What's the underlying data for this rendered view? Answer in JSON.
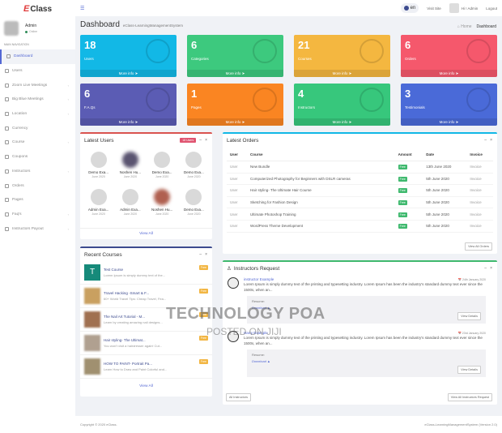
{
  "app": {
    "logo_e": "E",
    "logo_text": "Class"
  },
  "sidebar": {
    "user": {
      "name": "Admin",
      "status": "Online"
    },
    "nav_header": "MAIN NAVIGATION",
    "items": [
      {
        "label": "Dashboard",
        "icon": "dashboard-icon",
        "active": true,
        "arrow": false
      },
      {
        "label": "Users",
        "icon": "user-icon",
        "arrow": false
      },
      {
        "label": "Zoom Live Meetings",
        "icon": "video-icon",
        "arrow": true
      },
      {
        "label": "Big Blue Meetings",
        "icon": "eye-icon",
        "arrow": true
      },
      {
        "label": "Location",
        "icon": "globe-icon",
        "arrow": true
      },
      {
        "label": "Currency",
        "icon": "money-icon",
        "arrow": false
      },
      {
        "label": "Course",
        "icon": "book-icon",
        "arrow": true
      },
      {
        "label": "Coupons",
        "icon": "ticket-icon",
        "arrow": false
      },
      {
        "label": "Instructors",
        "icon": "instructor-icon",
        "arrow": true
      },
      {
        "label": "Orders",
        "icon": "history-icon",
        "arrow": false
      },
      {
        "label": "Pages",
        "icon": "page-icon",
        "arrow": false
      },
      {
        "label": "Faq's",
        "icon": "question-icon",
        "arrow": true
      },
      {
        "label": "Instructors Payout",
        "icon": "payout-icon",
        "arrow": true
      }
    ]
  },
  "topbar": {
    "lang": "en",
    "visit_site": "Visit Site",
    "greeting": "Hi ! Admin",
    "logout": "Logout"
  },
  "page": {
    "title": "Dashboard",
    "subtitle": "eClass-LearningManagementSystem",
    "crumb_home": "Home",
    "crumb_current": "Dashboard"
  },
  "cards": [
    {
      "num": "18",
      "label": "Users",
      "more": "More info",
      "color": "#12b8e6"
    },
    {
      "num": "6",
      "label": "Categories",
      "more": "More info",
      "color": "#3dc97e"
    },
    {
      "num": "21",
      "label": "Courses",
      "more": "More info",
      "color": "#f4b740"
    },
    {
      "num": "6",
      "label": "Orders",
      "more": "More info",
      "color": "#f5586c"
    },
    {
      "num": "6",
      "label": "F.A.Qs",
      "more": "More info",
      "color": "#5b5cb4"
    },
    {
      "num": "1",
      "label": "Pages",
      "more": "More info",
      "color": "#fa8522"
    },
    {
      "num": "4",
      "label": "Instructors",
      "more": "More info",
      "color": "#37c77c"
    },
    {
      "num": "3",
      "label": "Testimonials",
      "more": "More info",
      "color": "#4a6ad8"
    }
  ],
  "latest_users": {
    "title": "Latest Users",
    "badge": "18 Users",
    "view_all": "View All",
    "users": [
      {
        "name": "Demo Exa...",
        "date": "June 2020"
      },
      {
        "name": "Noshen Hu...",
        "date": "June 2020"
      },
      {
        "name": "Demo Exa...",
        "date": "June 2020"
      },
      {
        "name": "Demo Exa...",
        "date": "June 2020"
      },
      {
        "name": "Admin Exa...",
        "date": "June 2020"
      },
      {
        "name": "Admin Exa...",
        "date": "June 2020"
      },
      {
        "name": "Noshen Hu...",
        "date": "June 2020"
      },
      {
        "name": "Demo Exa...",
        "date": "June 2020"
      }
    ]
  },
  "latest_orders": {
    "title": "Latest Orders",
    "columns": [
      "User",
      "Course",
      "Amount",
      "Date",
      "Invoice"
    ],
    "rows": [
      {
        "user": "User",
        "course": "New Bundle",
        "amount": "Free",
        "date": "13th June 2020",
        "invoice": "Invoice"
      },
      {
        "user": "User",
        "course": "Computerized Photography for Beginners with DSLR cameras",
        "amount": "Free",
        "date": "5th June 2020",
        "invoice": "Invoice"
      },
      {
        "user": "User",
        "course": "Hair styling- The Ultimate Hair Course",
        "amount": "Free",
        "date": "5th June 2020",
        "invoice": "Invoice"
      },
      {
        "user": "User",
        "course": "Sketching for Fashion Design",
        "amount": "Free",
        "date": "5th June 2020",
        "invoice": "Invoice"
      },
      {
        "user": "User",
        "course": "Ultimate Photoshop Training",
        "amount": "Free",
        "date": "5th June 2020",
        "invoice": "Invoice"
      },
      {
        "user": "User",
        "course": "WordPress Theme Development",
        "amount": "Free",
        "date": "5th June 2020",
        "invoice": "Invoice"
      }
    ],
    "view_all": "View All Orders"
  },
  "recent_courses": {
    "title": "Recent Courses",
    "view_all": "View All",
    "items": [
      {
        "title": "Test Course",
        "desc": "Lorem Ipsum is simply dummy text of the...",
        "price": "Free",
        "thumb": "T"
      },
      {
        "title": "Travel Hacking -Smart & F...",
        "desc": "60+ World Travel Tips: Cheap Travel, Fea...",
        "price": "Free",
        "thumb": ""
      },
      {
        "title": "The Nail Art Tutorial - M...",
        "desc": "Learn by creating amazing nail designs...",
        "price": "Free",
        "thumb": ""
      },
      {
        "title": "Hair styling- The Ultimat...",
        "desc": "You won't visit a hairdresser again! Cut...",
        "price": "Free",
        "thumb": ""
      },
      {
        "title": "HOW TO PAINT- Portrait Pa...",
        "desc": "Learn How to Draw and Paint Colorful and...",
        "price": "Free",
        "thumb": ""
      }
    ]
  },
  "instructor_requests": {
    "title": "Instructors Request",
    "items": [
      {
        "name": "instructor Example",
        "date": "24th January 2020",
        "text": "Lorem Ipsum is simply dummy text of the printing and typesetting industry. Lorem Ipsum has been the industry's standard dummy text ever since the 1500s, when an...",
        "resume_label": "Resume:",
        "download": "Download",
        "details": "View Details"
      },
      {
        "name": "Harry Example",
        "date": "23rd January 2020",
        "text": "Lorem Ipsum is simply dummy text of the printing and typesetting industry. Lorem Ipsum has been the industry's standard dummy text ever since the 1500s, when an...",
        "resume_label": "Resume:",
        "download": "Download",
        "details": "View Details"
      }
    ],
    "all_instructors": "All Instructors",
    "view_all": "View All Instructors Request"
  },
  "footer": {
    "copyright": "Copyright © 2020 eClass.",
    "version": "eClass-LearningManagementSystem (Version 2.0)"
  },
  "watermark": {
    "line1": "TECHNOLOGY POA",
    "line2": "POSTED ON JIJI"
  }
}
